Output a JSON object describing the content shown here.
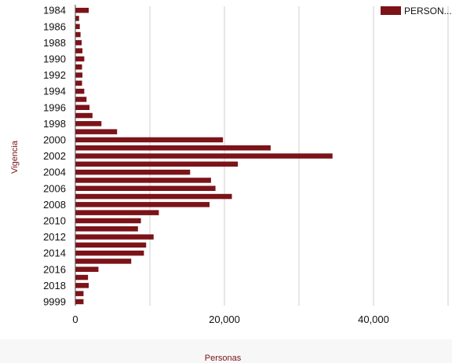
{
  "chart_data": {
    "type": "bar",
    "orientation": "horizontal",
    "title": "",
    "xlabel": "Personas",
    "ylabel": "Vigencia",
    "xlim": [
      0,
      50000
    ],
    "x_ticks": [
      0,
      20000,
      40000
    ],
    "x_tick_labels": [
      "0",
      "20,000",
      "40,000"
    ],
    "grid": true,
    "legend_position": "top-right",
    "bar_color": "#7b1318",
    "categories": [
      "1984",
      "1985",
      "1986",
      "1987",
      "1988",
      "1989",
      "1990",
      "1991",
      "1992",
      "1993",
      "1994",
      "1995",
      "1996",
      "1997",
      "1998",
      "1999",
      "2000",
      "2001",
      "2002",
      "2003",
      "2004",
      "2005",
      "2006",
      "2007",
      "2008",
      "2009",
      "2010",
      "2011",
      "2012",
      "2013",
      "2014",
      "2015",
      "2016",
      "2017",
      "2018",
      "2019",
      "9999"
    ],
    "category_tick_labels": [
      "1984",
      "1986",
      "1988",
      "1990",
      "1992",
      "1994",
      "1996",
      "1998",
      "2000",
      "2002",
      "2004",
      "2006",
      "2008",
      "2010",
      "2012",
      "2014",
      "2016",
      "2018",
      "9999"
    ],
    "series": [
      {
        "name": "PERSON...",
        "values": [
          1800,
          500,
          600,
          700,
          850,
          950,
          1200,
          900,
          950,
          900,
          1200,
          1500,
          1900,
          2300,
          3500,
          5600,
          19800,
          26200,
          34500,
          21800,
          15400,
          18200,
          18800,
          21000,
          18000,
          11200,
          8800,
          8400,
          10500,
          9500,
          9200,
          7500,
          3100,
          1700,
          1800,
          1100,
          1100
        ]
      }
    ]
  }
}
